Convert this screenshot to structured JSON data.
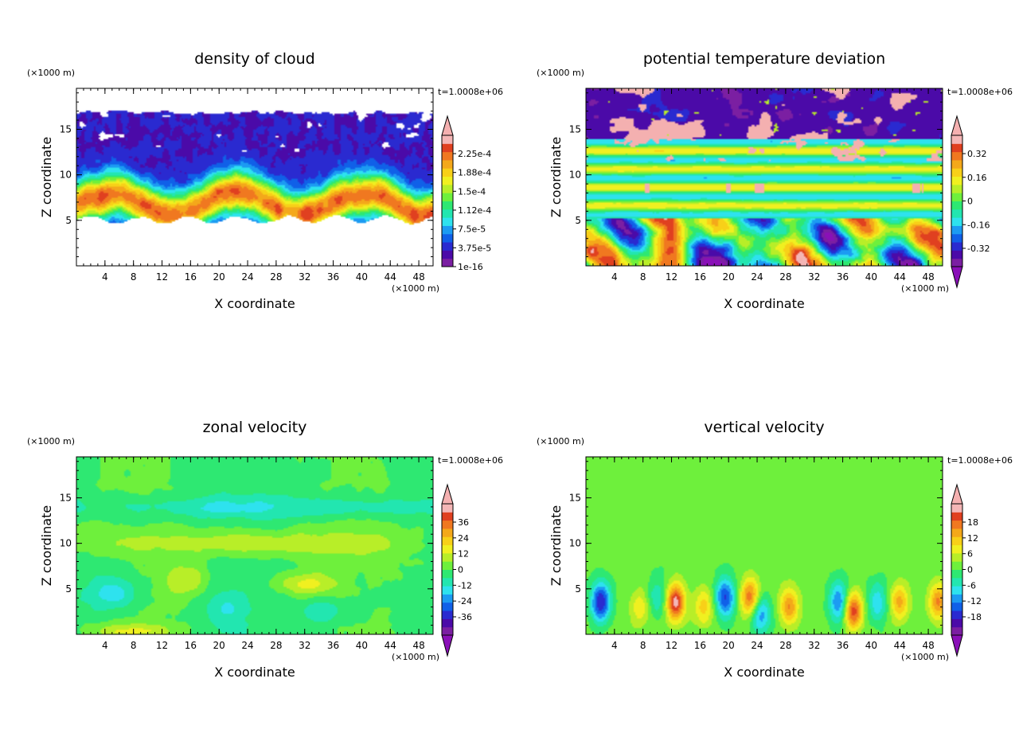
{
  "palette": {
    "colors": [
      "#7b1fa2",
      "#4b0aa8",
      "#2a2ad0",
      "#1060e8",
      "#1c9bf2",
      "#2ee2ee",
      "#22e6b0",
      "#2ee872",
      "#6ef03c",
      "#b8ee28",
      "#f0f020",
      "#f8d018",
      "#f4a81a",
      "#f07820",
      "#e04020",
      "#f4b6b6"
    ],
    "under": "#8a10b8",
    "over": "#f4b0b0",
    "axis_color": "#000000",
    "background": "#ffffff"
  },
  "chart_data": [
    {
      "type": "heatmap",
      "title": "density of cloud",
      "xlabel": "X coordinate",
      "ylabel": "Z coordinate",
      "x_unit": "(×1000 m)",
      "y_unit": "(×1000 m)",
      "time_label": "t=1.0008e+06",
      "xlim": [
        0,
        50
      ],
      "ylim": [
        0,
        19.5
      ],
      "xticks": [
        4,
        8,
        12,
        16,
        20,
        24,
        28,
        32,
        36,
        40,
        44,
        48
      ],
      "yticks": [
        5,
        10,
        15
      ],
      "colorbar_labels": [
        "1e-16",
        "3.75e-5",
        "7.5e-5",
        "1.12e-4",
        "1.5e-4",
        "1.88e-4",
        "2.25e-4"
      ],
      "colorbar_over_arrow": true,
      "colorbar_under_arrow": false,
      "field": "cloud"
    },
    {
      "type": "heatmap",
      "title": "potential temperature deviation",
      "xlabel": "X coordinate",
      "ylabel": "Z coordinate",
      "x_unit": "(×1000 m)",
      "y_unit": "(×1000 m)",
      "time_label": "t=1.0008e+06",
      "xlim": [
        0,
        50
      ],
      "ylim": [
        0,
        19.5
      ],
      "xticks": [
        4,
        8,
        12,
        16,
        20,
        24,
        28,
        32,
        36,
        40,
        44,
        48
      ],
      "yticks": [
        5,
        10,
        15
      ],
      "colorbar_labels": [
        "-0.32",
        "-0.16",
        "0",
        "0.16",
        "0.32"
      ],
      "colorbar_over_arrow": true,
      "colorbar_under_arrow": true,
      "field": "theta"
    },
    {
      "type": "heatmap",
      "title": "zonal velocity",
      "xlabel": "X coordinate",
      "ylabel": "Z coordinate",
      "x_unit": "(×1000 m)",
      "y_unit": "(×1000 m)",
      "time_label": "t=1.0008e+06",
      "xlim": [
        0,
        50
      ],
      "ylim": [
        0,
        19.5
      ],
      "xticks": [
        4,
        8,
        12,
        16,
        20,
        24,
        28,
        32,
        36,
        40,
        44,
        48
      ],
      "yticks": [
        5,
        10,
        15
      ],
      "colorbar_labels": [
        "-36",
        "-24",
        "-12",
        "0",
        "12",
        "24",
        "36"
      ],
      "colorbar_over_arrow": true,
      "colorbar_under_arrow": true,
      "field": "u"
    },
    {
      "type": "heatmap",
      "title": "vertical velocity",
      "xlabel": "X coordinate",
      "ylabel": "Z coordinate",
      "x_unit": "(×1000 m)",
      "y_unit": "(×1000 m)",
      "time_label": "t=1.0008e+06",
      "xlim": [
        0,
        50
      ],
      "ylim": [
        0,
        19.5
      ],
      "xticks": [
        4,
        8,
        12,
        16,
        20,
        24,
        28,
        32,
        36,
        40,
        44,
        48
      ],
      "yticks": [
        5,
        10,
        15
      ],
      "colorbar_labels": [
        "-18",
        "-12",
        "-6",
        "0",
        "6",
        "12",
        "18"
      ],
      "colorbar_over_arrow": true,
      "colorbar_under_arrow": true,
      "field": "w"
    }
  ]
}
